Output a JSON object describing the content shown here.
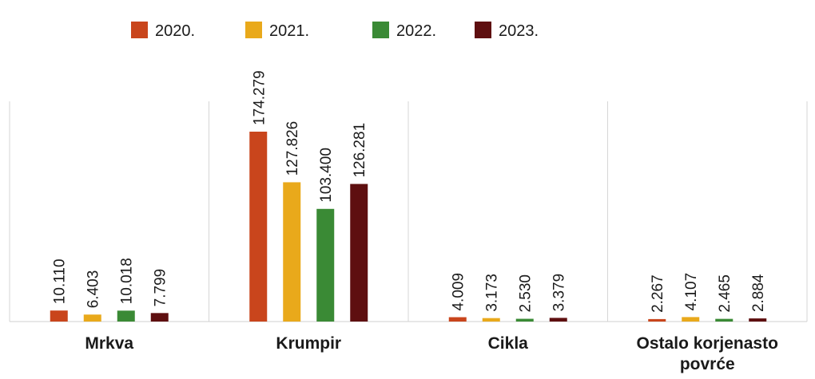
{
  "chart_data": {
    "type": "bar",
    "categories": [
      "Mrkva",
      "Krumpir",
      "Cikla",
      "Ostalo korjenasto povrće"
    ],
    "category_labels": [
      [
        "Mrkva"
      ],
      [
        "Krumpir"
      ],
      [
        "Cikla"
      ],
      [
        "Ostalo korjenasto",
        "povrće"
      ]
    ],
    "series": [
      {
        "name": "2020.",
        "color": "#c9451c",
        "values": [
          10110,
          174279,
          4009,
          2267
        ],
        "labels": [
          "10.110",
          "174.279",
          "4.009",
          "2.267"
        ]
      },
      {
        "name": "2021.",
        "color": "#e9a91b",
        "values": [
          6403,
          127826,
          3173,
          4107
        ],
        "labels": [
          "6.403",
          "127.826",
          "3.173",
          "4.107"
        ]
      },
      {
        "name": "2022.",
        "color": "#3a8a35",
        "values": [
          10018,
          103400,
          2530,
          2465
        ],
        "labels": [
          "10.018",
          "103.400",
          "2.530",
          "2.465"
        ]
      },
      {
        "name": "2023.",
        "color": "#5e0f10",
        "values": [
          7799,
          126281,
          3379,
          2884
        ],
        "labels": [
          "7.799",
          "126.281",
          "3.379",
          "2.884"
        ]
      }
    ],
    "ylim": [
      0,
      174279
    ],
    "legend_position": "top",
    "grid": false
  }
}
